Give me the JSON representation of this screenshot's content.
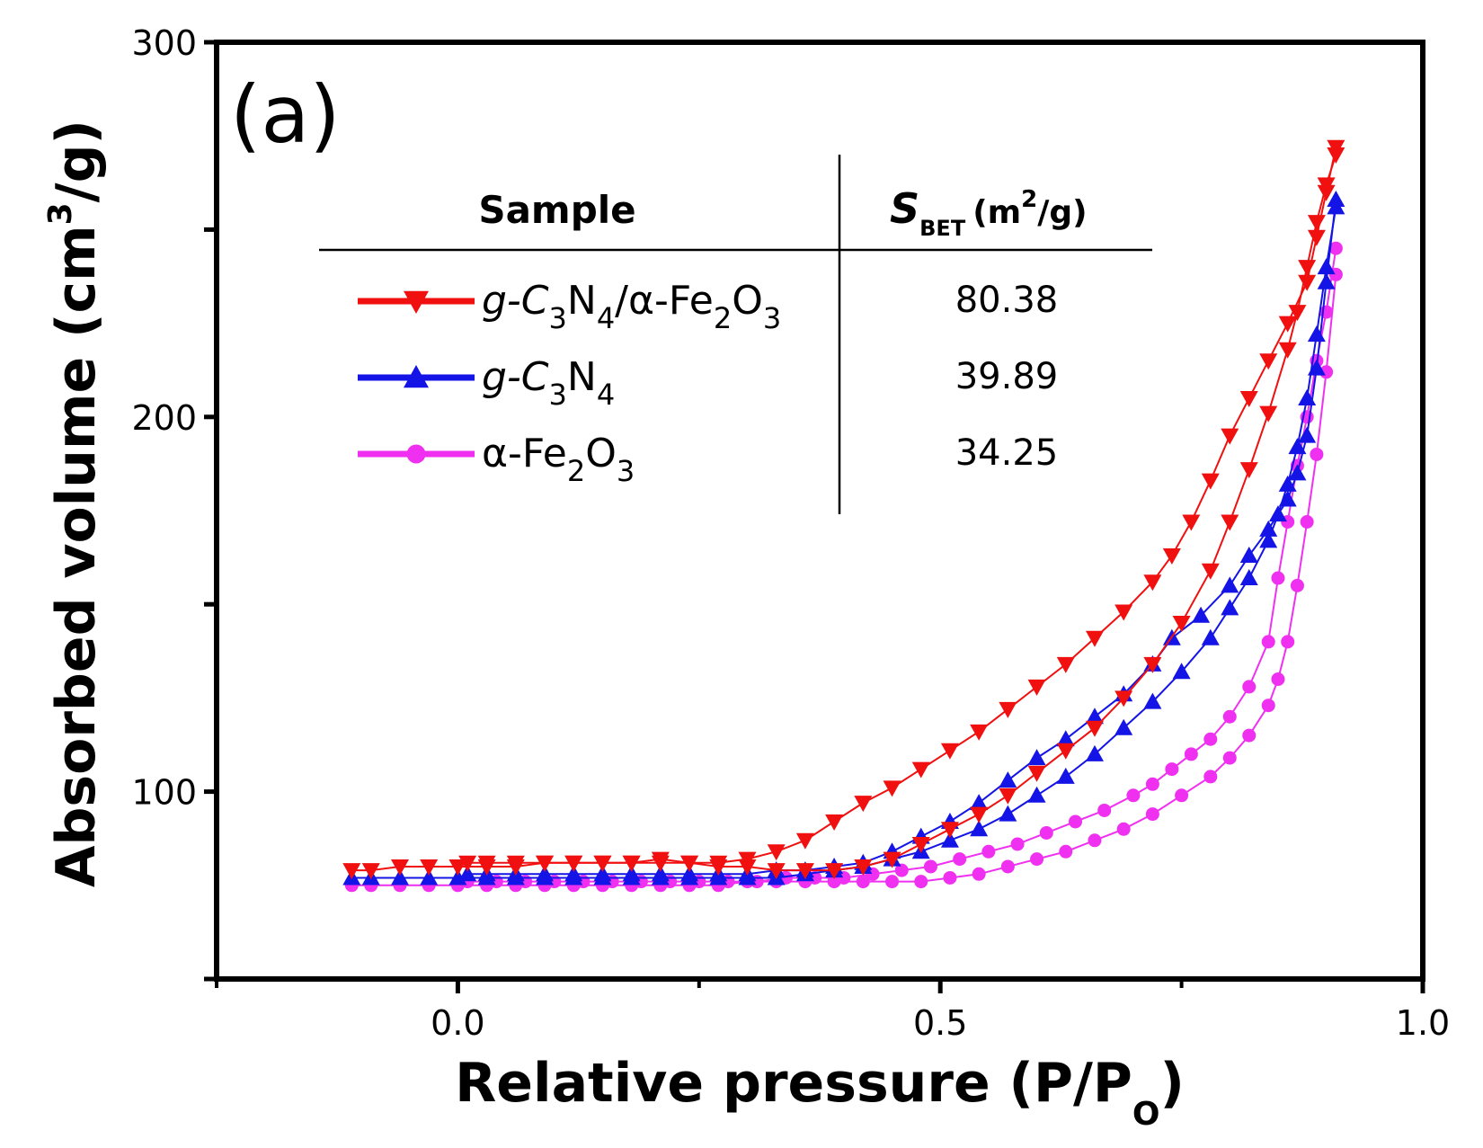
{
  "colors": {
    "red": "#f01010",
    "blue": "#1414e6",
    "magenta": "#f030f0",
    "axis": "#000000"
  },
  "chart_data": {
    "type": "scatter",
    "panel_label": "(a)",
    "xlabel": "Relative pressure (P/P",
    "xlabel_sub": "O",
    "xlabel_close": ")",
    "ylabel": "Absorbed volume (cm",
    "ylabel_sup": "3",
    "ylabel_close": "/g)",
    "xlim": [
      -0.25,
      1.0
    ],
    "ylim": [
      50,
      300
    ],
    "x_ticks": [
      0.0,
      0.5,
      1.0
    ],
    "x_tick_labels": [
      "0.0",
      "0.5",
      "1.0"
    ],
    "y_ticks": [
      100,
      200,
      300
    ],
    "y_tick_labels": [
      "100",
      "200",
      "300"
    ],
    "table": {
      "header_sample": "Sample",
      "header_sbet_main": "S",
      "header_sbet_sub": "BET",
      "header_sbet_unit": "(m",
      "header_sbet_unit_sup": "2",
      "header_sbet_unit_end": "/g)"
    },
    "series": [
      {
        "name": "g-C3N4/α-Fe2O3",
        "label_parts": [
          "g-C",
          "3",
          "N",
          "4",
          "/α-Fe",
          "2",
          "O",
          "3"
        ],
        "sbet": "80.38",
        "color": "red",
        "marker": "triangle-down",
        "adsorption": [
          [
            -0.11,
            79
          ],
          [
            -0.09,
            79
          ],
          [
            -0.06,
            80
          ],
          [
            -0.03,
            80
          ],
          [
            0.0,
            80
          ],
          [
            0.03,
            80
          ],
          [
            0.06,
            80
          ],
          [
            0.09,
            81
          ],
          [
            0.12,
            81
          ],
          [
            0.15,
            81
          ],
          [
            0.18,
            81
          ],
          [
            0.21,
            81
          ],
          [
            0.24,
            81
          ],
          [
            0.27,
            80
          ],
          [
            0.3,
            80
          ],
          [
            0.33,
            79
          ],
          [
            0.36,
            79
          ],
          [
            0.39,
            79
          ],
          [
            0.42,
            80
          ],
          [
            0.45,
            82
          ],
          [
            0.48,
            86
          ],
          [
            0.51,
            90
          ],
          [
            0.54,
            94
          ],
          [
            0.57,
            99
          ],
          [
            0.6,
            105
          ],
          [
            0.63,
            111
          ],
          [
            0.66,
            117
          ],
          [
            0.69,
            125
          ],
          [
            0.72,
            134
          ],
          [
            0.75,
            145
          ],
          [
            0.78,
            159
          ],
          [
            0.8,
            172
          ],
          [
            0.82,
            186
          ],
          [
            0.84,
            201
          ],
          [
            0.86,
            218
          ],
          [
            0.87,
            228
          ],
          [
            0.88,
            240
          ],
          [
            0.89,
            252
          ],
          [
            0.9,
            262
          ],
          [
            0.91,
            270
          ]
        ],
        "desorption": [
          [
            0.91,
            272
          ],
          [
            0.9,
            260
          ],
          [
            0.89,
            248
          ],
          [
            0.88,
            236
          ],
          [
            0.86,
            225
          ],
          [
            0.84,
            215
          ],
          [
            0.82,
            205
          ],
          [
            0.8,
            195
          ],
          [
            0.78,
            183
          ],
          [
            0.76,
            172
          ],
          [
            0.74,
            163
          ],
          [
            0.72,
            156
          ],
          [
            0.69,
            148
          ],
          [
            0.66,
            141
          ],
          [
            0.63,
            134
          ],
          [
            0.6,
            128
          ],
          [
            0.57,
            122
          ],
          [
            0.54,
            116
          ],
          [
            0.51,
            111
          ],
          [
            0.48,
            106
          ],
          [
            0.45,
            101
          ],
          [
            0.42,
            97
          ],
          [
            0.39,
            92
          ],
          [
            0.36,
            87
          ],
          [
            0.33,
            84
          ],
          [
            0.3,
            82
          ],
          [
            0.27,
            81
          ],
          [
            0.24,
            81
          ],
          [
            0.21,
            82
          ],
          [
            0.18,
            81
          ],
          [
            0.15,
            81
          ],
          [
            0.12,
            81
          ],
          [
            0.09,
            81
          ],
          [
            0.06,
            81
          ],
          [
            0.03,
            81
          ],
          [
            0.01,
            81
          ]
        ]
      },
      {
        "name": "g-C3N4",
        "label_parts": [
          "g-C",
          "3",
          "N",
          "4"
        ],
        "sbet": "39.89",
        "color": "blue",
        "marker": "triangle-up",
        "adsorption": [
          [
            -0.11,
            77
          ],
          [
            -0.09,
            77
          ],
          [
            -0.06,
            77
          ],
          [
            -0.03,
            77
          ],
          [
            0.0,
            77
          ],
          [
            0.03,
            77
          ],
          [
            0.06,
            77
          ],
          [
            0.09,
            77
          ],
          [
            0.12,
            77
          ],
          [
            0.15,
            77
          ],
          [
            0.18,
            77
          ],
          [
            0.21,
            77
          ],
          [
            0.24,
            77
          ],
          [
            0.27,
            77
          ],
          [
            0.3,
            77
          ],
          [
            0.33,
            77
          ],
          [
            0.36,
            78
          ],
          [
            0.39,
            79
          ],
          [
            0.42,
            80
          ],
          [
            0.45,
            82
          ],
          [
            0.48,
            84
          ],
          [
            0.51,
            87
          ],
          [
            0.54,
            90
          ],
          [
            0.57,
            94
          ],
          [
            0.6,
            99
          ],
          [
            0.63,
            104
          ],
          [
            0.66,
            110
          ],
          [
            0.69,
            117
          ],
          [
            0.72,
            124
          ],
          [
            0.75,
            132
          ],
          [
            0.78,
            141
          ],
          [
            0.8,
            149
          ],
          [
            0.82,
            157
          ],
          [
            0.84,
            167
          ],
          [
            0.85,
            174
          ],
          [
            0.86,
            182
          ],
          [
            0.87,
            192
          ],
          [
            0.88,
            205
          ],
          [
            0.89,
            222
          ],
          [
            0.9,
            240
          ],
          [
            0.91,
            256
          ]
        ],
        "desorption": [
          [
            0.91,
            258
          ],
          [
            0.9,
            236
          ],
          [
            0.89,
            213
          ],
          [
            0.88,
            195
          ],
          [
            0.87,
            185
          ],
          [
            0.86,
            178
          ],
          [
            0.84,
            170
          ],
          [
            0.82,
            163
          ],
          [
            0.8,
            155
          ],
          [
            0.77,
            147
          ],
          [
            0.74,
            141
          ],
          [
            0.72,
            134
          ],
          [
            0.69,
            126
          ],
          [
            0.66,
            120
          ],
          [
            0.63,
            114
          ],
          [
            0.6,
            109
          ],
          [
            0.57,
            103
          ],
          [
            0.54,
            97
          ],
          [
            0.51,
            92
          ],
          [
            0.48,
            88
          ],
          [
            0.45,
            84
          ],
          [
            0.42,
            81
          ],
          [
            0.39,
            80
          ],
          [
            0.36,
            79
          ],
          [
            0.33,
            79
          ],
          [
            0.3,
            78
          ],
          [
            0.27,
            78
          ],
          [
            0.24,
            78
          ],
          [
            0.21,
            78
          ],
          [
            0.18,
            78
          ],
          [
            0.15,
            78
          ],
          [
            0.12,
            78
          ],
          [
            0.09,
            78
          ],
          [
            0.06,
            78
          ],
          [
            0.03,
            78
          ],
          [
            0.01,
            78
          ]
        ]
      },
      {
        "name": "α-Fe2O3",
        "label_parts": [
          "α-Fe",
          "2",
          "O",
          "3"
        ],
        "sbet": "34.25",
        "color": "magenta",
        "marker": "circle",
        "adsorption": [
          [
            -0.11,
            75
          ],
          [
            -0.09,
            75
          ],
          [
            -0.06,
            75
          ],
          [
            -0.03,
            75
          ],
          [
            0.0,
            75
          ],
          [
            0.03,
            75
          ],
          [
            0.06,
            75
          ],
          [
            0.09,
            75
          ],
          [
            0.12,
            75
          ],
          [
            0.15,
            75
          ],
          [
            0.18,
            75
          ],
          [
            0.21,
            75
          ],
          [
            0.24,
            75
          ],
          [
            0.27,
            75
          ],
          [
            0.3,
            76
          ],
          [
            0.33,
            76
          ],
          [
            0.36,
            76
          ],
          [
            0.39,
            76
          ],
          [
            0.42,
            76
          ],
          [
            0.45,
            76
          ],
          [
            0.48,
            76
          ],
          [
            0.51,
            77
          ],
          [
            0.54,
            78
          ],
          [
            0.57,
            80
          ],
          [
            0.6,
            82
          ],
          [
            0.63,
            84
          ],
          [
            0.66,
            87
          ],
          [
            0.69,
            90
          ],
          [
            0.72,
            94
          ],
          [
            0.75,
            99
          ],
          [
            0.78,
            104
          ],
          [
            0.8,
            109
          ],
          [
            0.82,
            115
          ],
          [
            0.84,
            123
          ],
          [
            0.85,
            130
          ],
          [
            0.86,
            140
          ],
          [
            0.87,
            155
          ],
          [
            0.88,
            172
          ],
          [
            0.89,
            190
          ],
          [
            0.9,
            212
          ],
          [
            0.91,
            238
          ]
        ],
        "desorption": [
          [
            0.91,
            245
          ],
          [
            0.9,
            228
          ],
          [
            0.89,
            215
          ],
          [
            0.88,
            200
          ],
          [
            0.87,
            187
          ],
          [
            0.86,
            172
          ],
          [
            0.85,
            157
          ],
          [
            0.84,
            140
          ],
          [
            0.82,
            128
          ],
          [
            0.8,
            120
          ],
          [
            0.78,
            114
          ],
          [
            0.76,
            110
          ],
          [
            0.74,
            106
          ],
          [
            0.72,
            102
          ],
          [
            0.7,
            99
          ],
          [
            0.67,
            95
          ],
          [
            0.64,
            92
          ],
          [
            0.61,
            89
          ],
          [
            0.58,
            86
          ],
          [
            0.55,
            84
          ],
          [
            0.52,
            82
          ],
          [
            0.49,
            80
          ],
          [
            0.46,
            79
          ],
          [
            0.43,
            78
          ],
          [
            0.4,
            77
          ],
          [
            0.37,
            77
          ],
          [
            0.34,
            77
          ],
          [
            0.31,
            76
          ],
          [
            0.28,
            76
          ],
          [
            0.25,
            76
          ],
          [
            0.22,
            76
          ],
          [
            0.19,
            76
          ],
          [
            0.16,
            76
          ],
          [
            0.13,
            76
          ],
          [
            0.1,
            76
          ],
          [
            0.07,
            76
          ],
          [
            0.04,
            76
          ],
          [
            0.01,
            76
          ]
        ]
      }
    ]
  }
}
